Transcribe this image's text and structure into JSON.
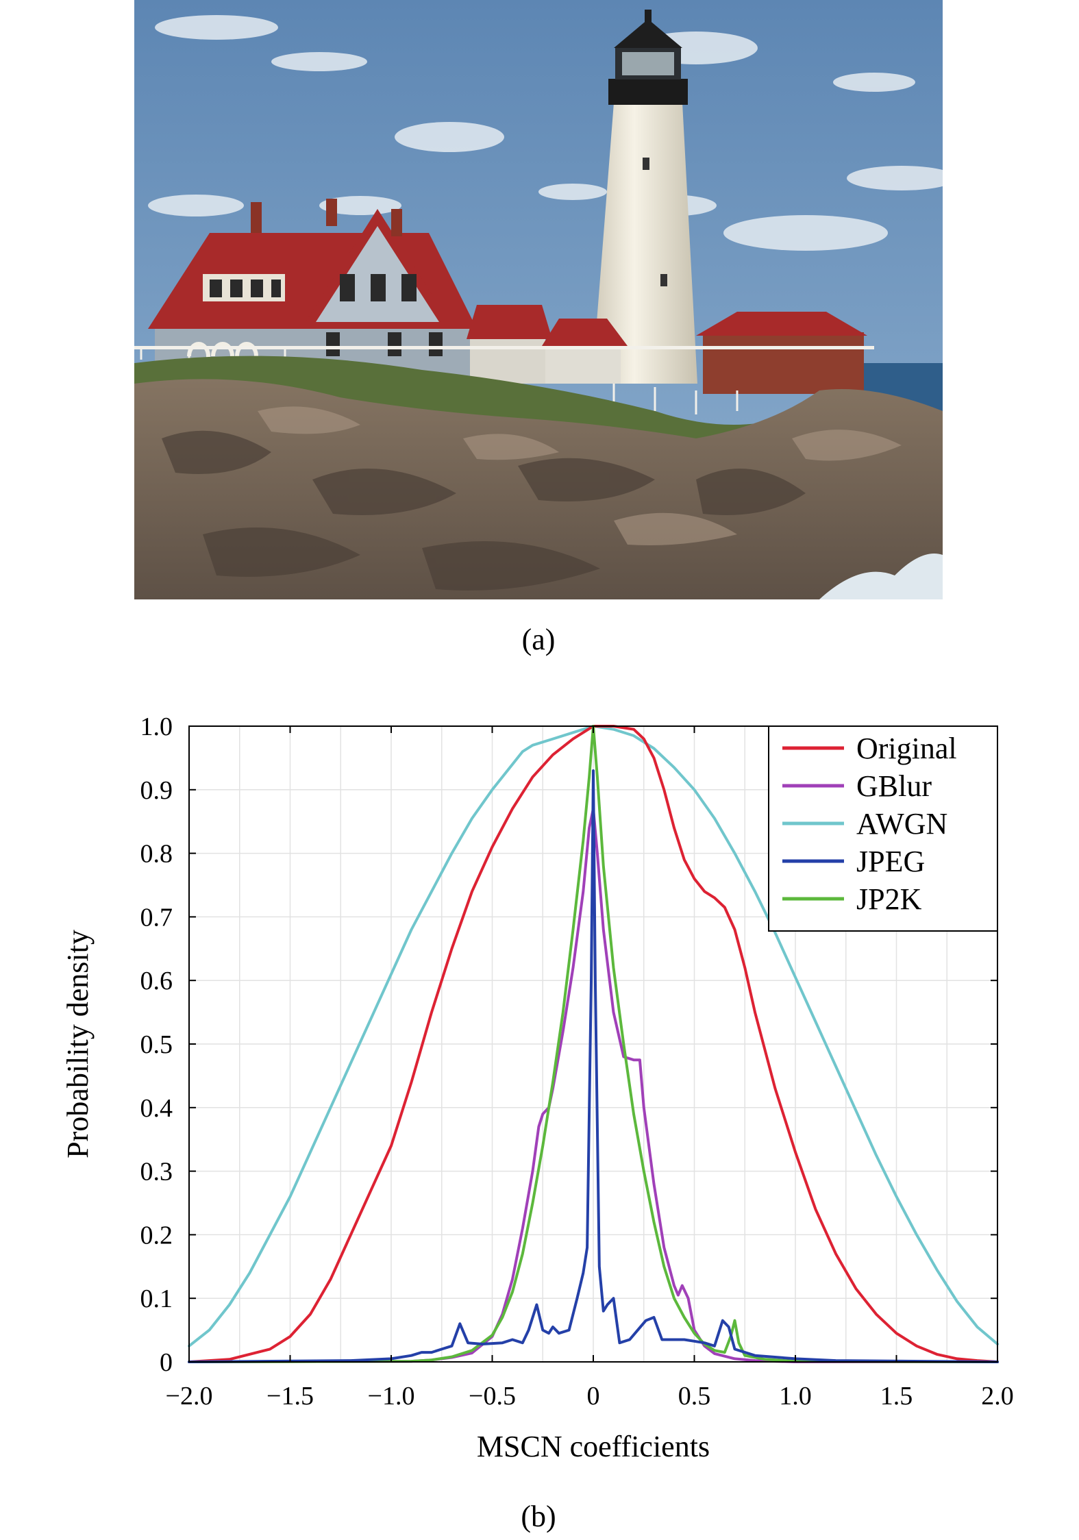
{
  "figure": {
    "caption_a": "(a)",
    "caption_b": "(b)"
  },
  "colors": {
    "Original": "#dd2233",
    "GBlur": "#a040b8",
    "AWGN": "#70c6cc",
    "JPEG": "#2440a8",
    "JP2K": "#5cb83c"
  },
  "chart_data": {
    "type": "line",
    "title": "",
    "xlabel": "MSCN coefficients",
    "ylabel": "Probability density",
    "xlim": [
      -2.0,
      2.0
    ],
    "ylim": [
      0,
      1.0
    ],
    "x_ticks": [
      -2.0,
      -1.5,
      -1.0,
      -0.5,
      0,
      0.5,
      1.0,
      1.5,
      2.0
    ],
    "x_tick_labels": [
      "−2.0",
      "−1.5",
      "−1.0",
      "−0.5",
      "0",
      "0.5",
      "1.0",
      "1.5",
      "2.0"
    ],
    "y_ticks": [
      0,
      0.1,
      0.2,
      0.3,
      0.4,
      0.5,
      0.6,
      0.7,
      0.8,
      0.9,
      1.0
    ],
    "y_tick_labels": [
      "0",
      "0.1",
      "0.2",
      "0.3",
      "0.4",
      "0.5",
      "0.6",
      "0.7",
      "0.8",
      "0.9",
      "1.0"
    ],
    "grid": true,
    "legend_position": "top-right",
    "series": [
      {
        "name": "Original",
        "points": [
          [
            -2.0,
            0.0
          ],
          [
            -1.8,
            0.004
          ],
          [
            -1.6,
            0.02
          ],
          [
            -1.5,
            0.04
          ],
          [
            -1.4,
            0.075
          ],
          [
            -1.3,
            0.13
          ],
          [
            -1.2,
            0.2
          ],
          [
            -1.1,
            0.27
          ],
          [
            -1.0,
            0.34
          ],
          [
            -0.9,
            0.44
          ],
          [
            -0.8,
            0.55
          ],
          [
            -0.7,
            0.65
          ],
          [
            -0.6,
            0.74
          ],
          [
            -0.5,
            0.81
          ],
          [
            -0.4,
            0.87
          ],
          [
            -0.3,
            0.92
          ],
          [
            -0.2,
            0.955
          ],
          [
            -0.1,
            0.98
          ],
          [
            0.0,
            1.0
          ],
          [
            0.1,
            1.0
          ],
          [
            0.2,
            0.995
          ],
          [
            0.25,
            0.98
          ],
          [
            0.3,
            0.95
          ],
          [
            0.35,
            0.9
          ],
          [
            0.4,
            0.84
          ],
          [
            0.45,
            0.79
          ],
          [
            0.5,
            0.76
          ],
          [
            0.55,
            0.74
          ],
          [
            0.6,
            0.73
          ],
          [
            0.65,
            0.715
          ],
          [
            0.7,
            0.68
          ],
          [
            0.75,
            0.62
          ],
          [
            0.8,
            0.55
          ],
          [
            0.9,
            0.43
          ],
          [
            1.0,
            0.33
          ],
          [
            1.1,
            0.24
          ],
          [
            1.2,
            0.17
          ],
          [
            1.3,
            0.115
          ],
          [
            1.4,
            0.075
          ],
          [
            1.5,
            0.045
          ],
          [
            1.6,
            0.025
          ],
          [
            1.7,
            0.012
          ],
          [
            1.8,
            0.005
          ],
          [
            1.9,
            0.002
          ],
          [
            2.0,
            0.0
          ]
        ]
      },
      {
        "name": "GBlur",
        "points": [
          [
            -2.0,
            0.0
          ],
          [
            -0.9,
            0.001
          ],
          [
            -0.8,
            0.003
          ],
          [
            -0.7,
            0.007
          ],
          [
            -0.6,
            0.014
          ],
          [
            -0.5,
            0.04
          ],
          [
            -0.45,
            0.075
          ],
          [
            -0.4,
            0.13
          ],
          [
            -0.35,
            0.21
          ],
          [
            -0.3,
            0.3
          ],
          [
            -0.27,
            0.37
          ],
          [
            -0.25,
            0.39
          ],
          [
            -0.22,
            0.4
          ],
          [
            -0.2,
            0.43
          ],
          [
            -0.15,
            0.52
          ],
          [
            -0.1,
            0.62
          ],
          [
            -0.05,
            0.74
          ],
          [
            -0.02,
            0.84
          ],
          [
            0.0,
            0.87
          ],
          [
            0.02,
            0.8
          ],
          [
            0.05,
            0.68
          ],
          [
            0.1,
            0.55
          ],
          [
            0.15,
            0.48
          ],
          [
            0.2,
            0.475
          ],
          [
            0.23,
            0.475
          ],
          [
            0.25,
            0.4
          ],
          [
            0.3,
            0.28
          ],
          [
            0.35,
            0.18
          ],
          [
            0.4,
            0.12
          ],
          [
            0.42,
            0.105
          ],
          [
            0.44,
            0.12
          ],
          [
            0.47,
            0.1
          ],
          [
            0.5,
            0.05
          ],
          [
            0.55,
            0.025
          ],
          [
            0.6,
            0.013
          ],
          [
            0.7,
            0.005
          ],
          [
            0.8,
            0.002
          ],
          [
            1.0,
            0.0
          ],
          [
            2.0,
            0.0
          ]
        ]
      },
      {
        "name": "AWGN",
        "points": [
          [
            -2.0,
            0.025
          ],
          [
            -1.9,
            0.05
          ],
          [
            -1.8,
            0.09
          ],
          [
            -1.7,
            0.14
          ],
          [
            -1.6,
            0.2
          ],
          [
            -1.5,
            0.26
          ],
          [
            -1.4,
            0.33
          ],
          [
            -1.3,
            0.4
          ],
          [
            -1.2,
            0.47
          ],
          [
            -1.1,
            0.54
          ],
          [
            -1.0,
            0.61
          ],
          [
            -0.9,
            0.68
          ],
          [
            -0.8,
            0.74
          ],
          [
            -0.7,
            0.8
          ],
          [
            -0.6,
            0.855
          ],
          [
            -0.5,
            0.9
          ],
          [
            -0.4,
            0.94
          ],
          [
            -0.35,
            0.96
          ],
          [
            -0.3,
            0.97
          ],
          [
            -0.2,
            0.98
          ],
          [
            -0.1,
            0.99
          ],
          [
            0.0,
            1.0
          ],
          [
            0.1,
            0.995
          ],
          [
            0.2,
            0.985
          ],
          [
            0.3,
            0.965
          ],
          [
            0.4,
            0.935
          ],
          [
            0.5,
            0.9
          ],
          [
            0.6,
            0.855
          ],
          [
            0.7,
            0.8
          ],
          [
            0.8,
            0.74
          ],
          [
            0.9,
            0.675
          ],
          [
            1.0,
            0.605
          ],
          [
            1.1,
            0.535
          ],
          [
            1.2,
            0.465
          ],
          [
            1.3,
            0.395
          ],
          [
            1.4,
            0.325
          ],
          [
            1.5,
            0.26
          ],
          [
            1.6,
            0.2
          ],
          [
            1.7,
            0.145
          ],
          [
            1.8,
            0.095
          ],
          [
            1.9,
            0.055
          ],
          [
            2.0,
            0.028
          ]
        ]
      },
      {
        "name": "JPEG",
        "points": [
          [
            -2.0,
            0.0
          ],
          [
            -1.2,
            0.002
          ],
          [
            -1.0,
            0.005
          ],
          [
            -0.9,
            0.01
          ],
          [
            -0.85,
            0.015
          ],
          [
            -0.8,
            0.015
          ],
          [
            -0.75,
            0.02
          ],
          [
            -0.7,
            0.025
          ],
          [
            -0.66,
            0.06
          ],
          [
            -0.62,
            0.03
          ],
          [
            -0.55,
            0.028
          ],
          [
            -0.45,
            0.03
          ],
          [
            -0.4,
            0.035
          ],
          [
            -0.35,
            0.03
          ],
          [
            -0.32,
            0.05
          ],
          [
            -0.28,
            0.09
          ],
          [
            -0.25,
            0.05
          ],
          [
            -0.22,
            0.045
          ],
          [
            -0.2,
            0.055
          ],
          [
            -0.17,
            0.045
          ],
          [
            -0.12,
            0.05
          ],
          [
            -0.08,
            0.1
          ],
          [
            -0.05,
            0.14
          ],
          [
            -0.03,
            0.18
          ],
          [
            -0.01,
            0.6
          ],
          [
            0.0,
            0.93
          ],
          [
            0.01,
            0.6
          ],
          [
            0.03,
            0.15
          ],
          [
            0.05,
            0.08
          ],
          [
            0.07,
            0.09
          ],
          [
            0.1,
            0.1
          ],
          [
            0.13,
            0.03
          ],
          [
            0.18,
            0.035
          ],
          [
            0.22,
            0.05
          ],
          [
            0.26,
            0.065
          ],
          [
            0.3,
            0.07
          ],
          [
            0.34,
            0.035
          ],
          [
            0.45,
            0.035
          ],
          [
            0.55,
            0.03
          ],
          [
            0.6,
            0.025
          ],
          [
            0.64,
            0.065
          ],
          [
            0.67,
            0.055
          ],
          [
            0.7,
            0.02
          ],
          [
            0.8,
            0.01
          ],
          [
            1.0,
            0.005
          ],
          [
            1.2,
            0.002
          ],
          [
            2.0,
            0.0
          ]
        ]
      },
      {
        "name": "JP2K",
        "points": [
          [
            -2.0,
            0.0
          ],
          [
            -0.9,
            0.001
          ],
          [
            -0.8,
            0.003
          ],
          [
            -0.7,
            0.008
          ],
          [
            -0.6,
            0.018
          ],
          [
            -0.5,
            0.042
          ],
          [
            -0.45,
            0.07
          ],
          [
            -0.4,
            0.11
          ],
          [
            -0.35,
            0.17
          ],
          [
            -0.3,
            0.25
          ],
          [
            -0.25,
            0.34
          ],
          [
            -0.2,
            0.44
          ],
          [
            -0.15,
            0.55
          ],
          [
            -0.1,
            0.68
          ],
          [
            -0.05,
            0.82
          ],
          [
            -0.02,
            0.92
          ],
          [
            0.0,
            1.0
          ],
          [
            0.02,
            0.92
          ],
          [
            0.05,
            0.78
          ],
          [
            0.1,
            0.62
          ],
          [
            0.15,
            0.5
          ],
          [
            0.2,
            0.39
          ],
          [
            0.25,
            0.3
          ],
          [
            0.3,
            0.22
          ],
          [
            0.35,
            0.15
          ],
          [
            0.4,
            0.1
          ],
          [
            0.45,
            0.07
          ],
          [
            0.5,
            0.045
          ],
          [
            0.55,
            0.028
          ],
          [
            0.6,
            0.018
          ],
          [
            0.65,
            0.015
          ],
          [
            0.68,
            0.04
          ],
          [
            0.7,
            0.065
          ],
          [
            0.72,
            0.03
          ],
          [
            0.75,
            0.01
          ],
          [
            0.85,
            0.004
          ],
          [
            1.0,
            0.001
          ],
          [
            2.0,
            0.0
          ]
        ]
      }
    ]
  }
}
